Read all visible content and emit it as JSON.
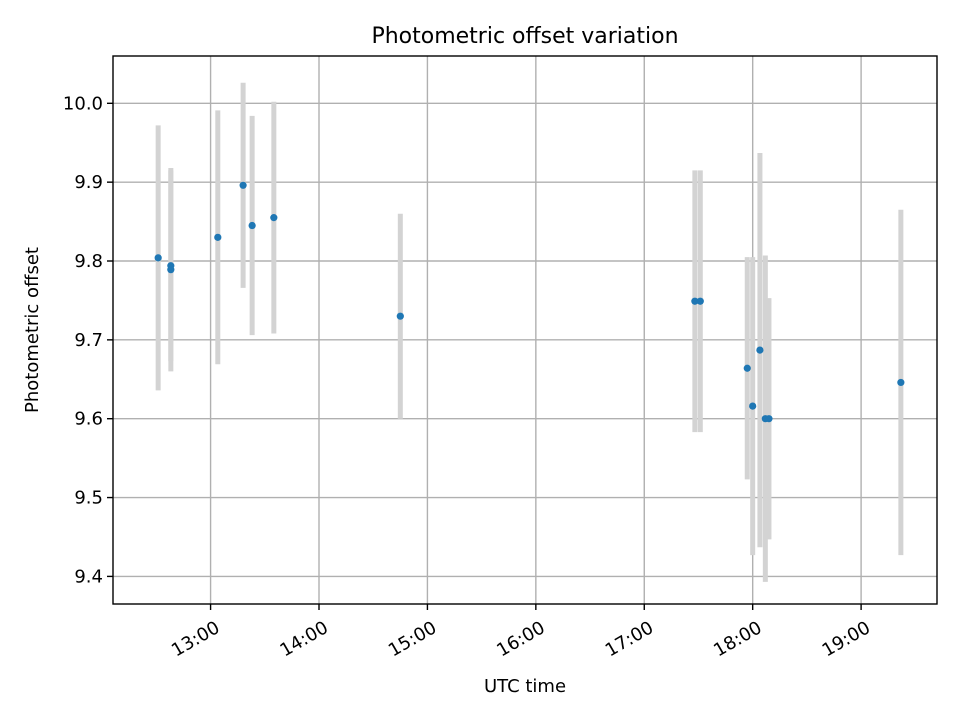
{
  "chart_data": {
    "type": "scatter",
    "title": "Photometric offset variation",
    "xlabel": "UTC time",
    "ylabel": "Photometric offset",
    "x_unit": "hours UTC",
    "xlim": [
      12.1,
      19.7
    ],
    "ylim": [
      9.365,
      10.06
    ],
    "xticks": [
      13,
      14,
      15,
      16,
      17,
      18,
      19
    ],
    "xtick_labels": [
      "13:00",
      "14:00",
      "15:00",
      "16:00",
      "17:00",
      "18:00",
      "19:00"
    ],
    "yticks": [
      9.4,
      9.5,
      9.6,
      9.7,
      9.8,
      9.9,
      10.0
    ],
    "ytick_labels": [
      "9.4",
      "9.5",
      "9.6",
      "9.7",
      "9.8",
      "9.9",
      "10.0"
    ],
    "grid": true,
    "point_color": "#1f77b4",
    "errorbar_color": "#d3d3d3",
    "points": [
      {
        "x": "12:31",
        "y": 9.804,
        "err": 0.168
      },
      {
        "x": "12:38",
        "y": 9.794,
        "err": 0.121
      },
      {
        "x": "12:38",
        "y": 9.789,
        "err": 0.129
      },
      {
        "x": "13:04",
        "y": 9.83,
        "err": 0.161
      },
      {
        "x": "13:18",
        "y": 9.896,
        "err": 0.13
      },
      {
        "x": "13:23",
        "y": 9.845,
        "err": 0.139
      },
      {
        "x": "13:35",
        "y": 9.855,
        "err": 0.147
      },
      {
        "x": "14:45",
        "y": 9.73,
        "err": 0.13
      },
      {
        "x": "17:28",
        "y": 9.749,
        "err": 0.166
      },
      {
        "x": "17:31",
        "y": 9.749,
        "err": 0.166
      },
      {
        "x": "17:57",
        "y": 9.664,
        "err": 0.141
      },
      {
        "x": "18:00",
        "y": 9.616,
        "err": 0.189
      },
      {
        "x": "18:04",
        "y": 9.687,
        "err": 0.25
      },
      {
        "x": "18:07",
        "y": 9.6,
        "err": 0.207
      },
      {
        "x": "18:09",
        "y": 9.6,
        "err": 0.153
      },
      {
        "x": "19:22",
        "y": 9.646,
        "err": 0.219
      }
    ]
  }
}
